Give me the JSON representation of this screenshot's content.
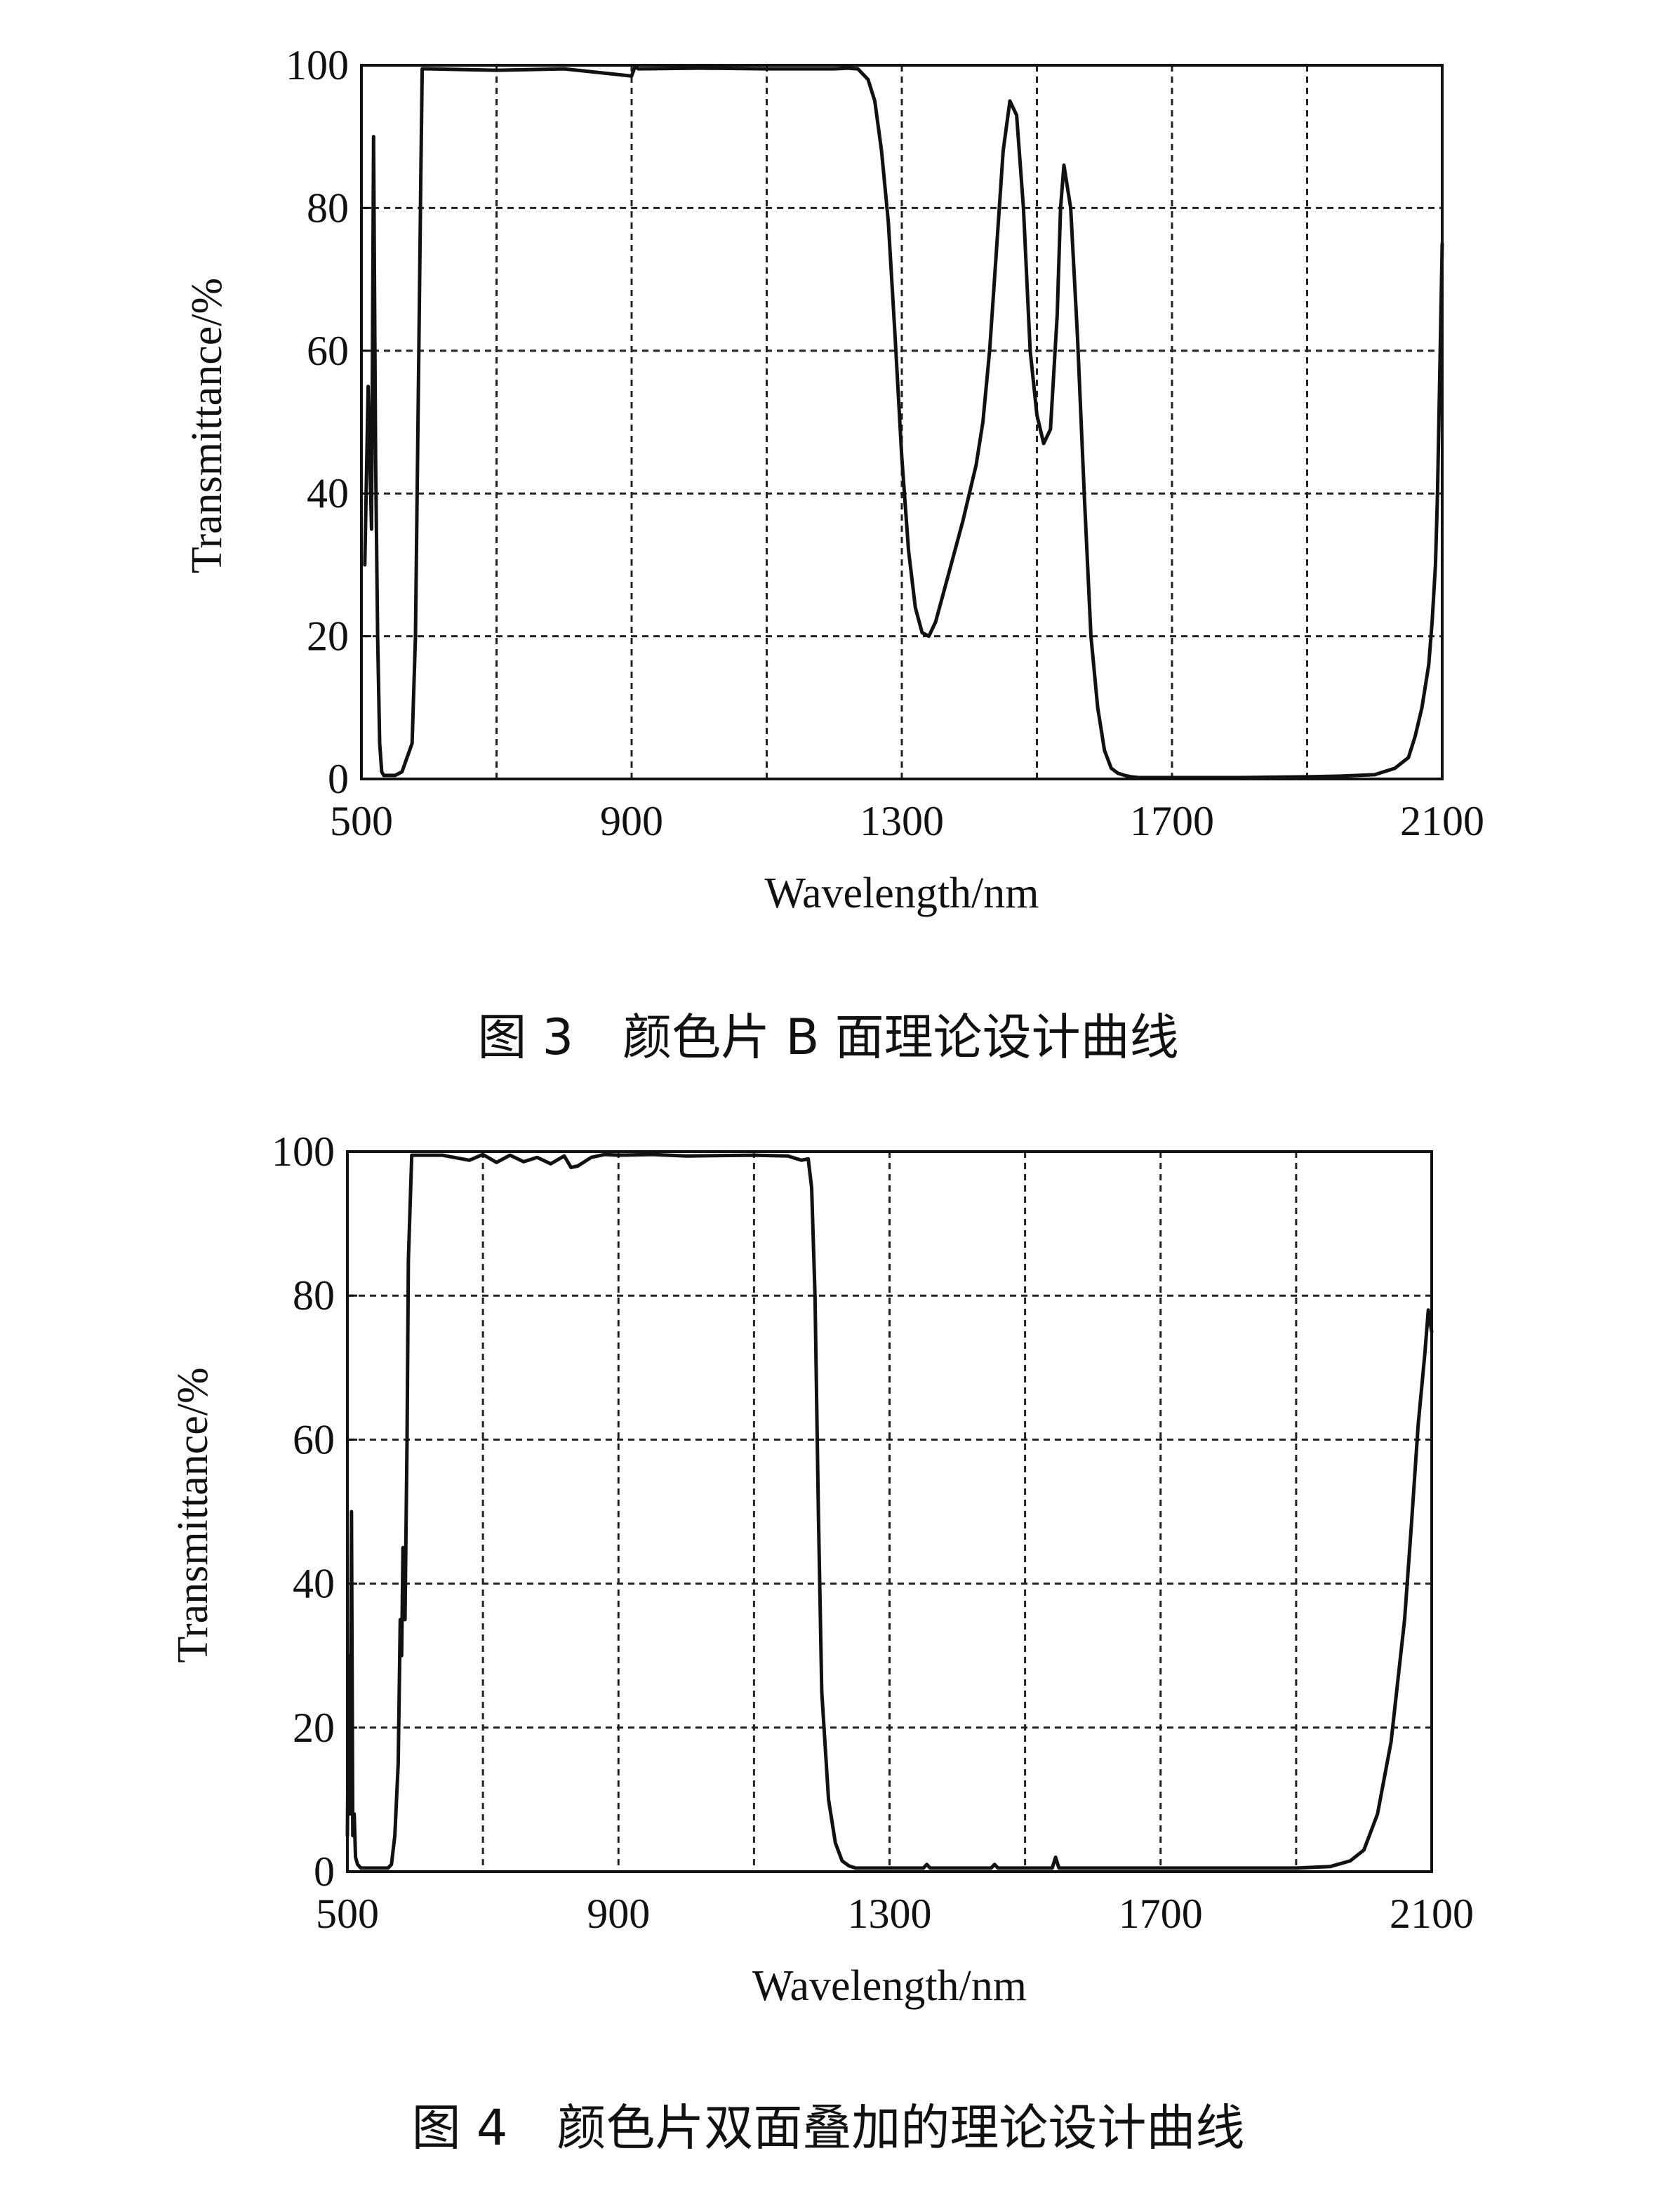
{
  "chart_data": [
    {
      "type": "line",
      "caption": "图 3　颜色片 B 面理论设计曲线",
      "xlabel": "Wavelength/nm",
      "ylabel": "Transmittance/%",
      "xlim": [
        500,
        2100
      ],
      "ylim": [
        0,
        100
      ],
      "xticks": [
        500,
        900,
        1300,
        1700,
        2100
      ],
      "yticks": [
        0,
        20,
        40,
        60,
        80,
        100
      ],
      "grid": true,
      "series": [
        {
          "x": [
            505,
            510,
            515,
            518,
            521,
            524,
            527,
            530,
            533,
            537,
            540,
            545,
            550,
            560,
            575,
            580,
            585,
            588,
            590,
            595,
            600,
            700,
            800,
            900,
            905,
            910,
            1000,
            1100,
            1200,
            1220,
            1235,
            1250,
            1260,
            1270,
            1280,
            1290,
            1300,
            1310,
            1320,
            1330,
            1340,
            1350,
            1370,
            1390,
            1410,
            1420,
            1430,
            1440,
            1450,
            1460,
            1470,
            1480,
            1490,
            1500,
            1510,
            1520,
            1530,
            1535,
            1540,
            1550,
            1560,
            1570,
            1575,
            1580,
            1590,
            1600,
            1610,
            1620,
            1630,
            1640,
            1650,
            1660,
            1670,
            1680,
            1700,
            1800,
            1900,
            1950,
            2000,
            2030,
            2050,
            2060,
            2070,
            2080,
            2085,
            2090,
            2093,
            2096,
            2100
          ],
          "y": [
            30,
            55,
            35,
            90,
            45,
            20,
            5,
            1,
            0.5,
            0.5,
            0.5,
            0.5,
            0.5,
            1,
            5,
            20,
            60,
            85,
            99.5,
            99.5,
            99.5,
            99.3,
            99.5,
            98.5,
            99.8,
            99.5,
            99.6,
            99.5,
            99.5,
            99.6,
            99.5,
            98,
            95,
            88,
            78,
            62,
            45,
            32,
            24,
            20.5,
            20,
            22,
            29,
            36,
            44,
            50,
            60,
            74,
            88,
            95,
            93,
            80,
            60,
            51,
            47,
            49,
            65,
            80,
            86,
            80,
            62,
            40,
            30,
            20,
            10,
            4,
            1.5,
            0.8,
            0.5,
            0.3,
            0.2,
            0.2,
            0.2,
            0.2,
            0.2,
            0.2,
            0.3,
            0.4,
            0.6,
            1.5,
            3,
            6,
            10,
            16,
            22,
            30,
            40,
            55,
            75
          ]
        }
      ]
    },
    {
      "type": "line",
      "caption": "图 4　颜色片双面叠加的理论设计曲线",
      "xlabel": "Wavelength/nm",
      "ylabel": "Transmittance/%",
      "xlim": [
        500,
        2100
      ],
      "ylim": [
        0,
        100
      ],
      "xticks": [
        500,
        900,
        1300,
        1700,
        2100
      ],
      "yticks": [
        0,
        20,
        40,
        60,
        80,
        100
      ],
      "grid": true,
      "series": [
        {
          "x": [
            500,
            502,
            504,
            506,
            508,
            510,
            512,
            515,
            520,
            530,
            550,
            560,
            565,
            570,
            575,
            578,
            580,
            582,
            585,
            588,
            590,
            595,
            600,
            640,
            680,
            700,
            720,
            740,
            760,
            780,
            800,
            820,
            830,
            840,
            860,
            880,
            900,
            950,
            1000,
            1100,
            1150,
            1160,
            1170,
            1180,
            1185,
            1190,
            1195,
            1200,
            1210,
            1220,
            1230,
            1240,
            1250,
            1260,
            1300,
            1350,
            1355,
            1360,
            1400,
            1450,
            1455,
            1460,
            1500,
            1540,
            1545,
            1550,
            1600,
            1700,
            1750,
            1800,
            1900,
            1950,
            1980,
            2000,
            2020,
            2040,
            2060,
            2070,
            2080,
            2090,
            2095,
            2100
          ],
          "y": [
            5,
            30,
            8,
            50,
            5,
            8,
            2,
            1,
            0.5,
            0.5,
            0.5,
            0.5,
            1,
            5,
            15,
            35,
            30,
            45,
            35,
            60,
            85,
            99.5,
            99.5,
            99.5,
            98.8,
            99.6,
            98.5,
            99.5,
            98.6,
            99.2,
            98.3,
            99.4,
            97.8,
            98,
            99.2,
            99.6,
            99.5,
            99.6,
            99.4,
            99.5,
            99.4,
            99.1,
            98.8,
            99,
            95,
            80,
            50,
            25,
            10,
            4,
            1.5,
            0.8,
            0.5,
            0.5,
            0.5,
            0.5,
            1,
            0.5,
            0.5,
            0.5,
            1,
            0.5,
            0.5,
            0.5,
            2,
            0.5,
            0.5,
            0.5,
            0.5,
            0.5,
            0.5,
            0.7,
            1.5,
            3,
            8,
            18,
            35,
            48,
            62,
            72,
            78,
            75
          ]
        }
      ]
    }
  ]
}
